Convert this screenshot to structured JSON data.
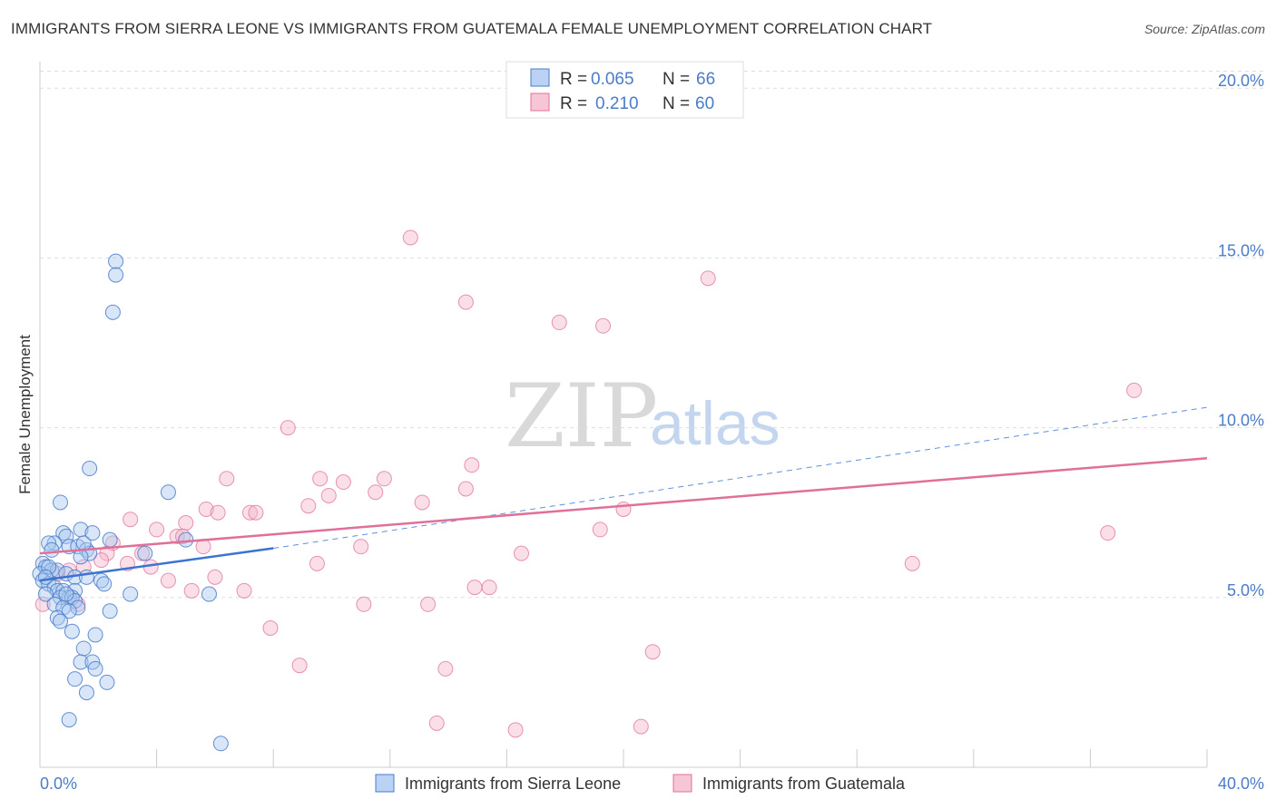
{
  "title": "IMMIGRANTS FROM SIERRA LEONE VS IMMIGRANTS FROM GUATEMALA FEMALE UNEMPLOYMENT CORRELATION CHART",
  "source": "Source: ZipAtlas.com",
  "watermark": {
    "zip": "ZIP",
    "atlas": "atlas"
  },
  "colors": {
    "blue": "#4a7cc9",
    "blue_fill": "#a9c7f0",
    "blue_line": "#3a74d2",
    "pink": "#e0709a",
    "pink_fill": "#f5b8cb",
    "grid": "#dddddd",
    "axis": "#cccccc"
  },
  "legend": {
    "rows": [
      {
        "r_label": "R =",
        "r_value": "0.065",
        "n_label": "N =",
        "n_value": "66"
      },
      {
        "r_label": "R =",
        "r_value": "0.210",
        "n_label": "N =",
        "n_value": "60"
      }
    ]
  },
  "chart_data": {
    "type": "scatter",
    "title": "IMMIGRANTS FROM SIERRA LEONE VS IMMIGRANTS FROM GUATEMALA FEMALE UNEMPLOYMENT CORRELATION CHART",
    "xlabel": "",
    "ylabel": "Female Unemployment",
    "xlim": [
      0,
      40
    ],
    "ylim": [
      0,
      20.5
    ],
    "x_tick_labels": [
      "0.0%",
      "40.0%"
    ],
    "y_ticks": [
      5,
      10,
      15,
      20
    ],
    "y_tick_labels": [
      "5.0%",
      "10.0%",
      "15.0%",
      "20.0%"
    ],
    "series": [
      {
        "name": "Immigrants from Sierra Leone",
        "color": "#4a7cc9",
        "R": 0.065,
        "N": 66,
        "trend": {
          "x0": 0,
          "y0": 5.5,
          "x1": 8,
          "y1": 6.45,
          "dash_to_x": 40,
          "dash_to_y": 10.6
        },
        "points": [
          [
            2.6,
            14.9
          ],
          [
            2.6,
            14.5
          ],
          [
            2.5,
            13.4
          ],
          [
            1.7,
            8.8
          ],
          [
            4.4,
            8.1
          ],
          [
            0.7,
            7.8
          ],
          [
            0.8,
            6.9
          ],
          [
            1.4,
            7.0
          ],
          [
            0.9,
            6.8
          ],
          [
            2.4,
            6.7
          ],
          [
            5.0,
            6.7
          ],
          [
            0.5,
            6.6
          ],
          [
            0.3,
            6.6
          ],
          [
            1.0,
            6.5
          ],
          [
            1.3,
            6.5
          ],
          [
            1.6,
            6.4
          ],
          [
            1.7,
            6.3
          ],
          [
            1.4,
            6.2
          ],
          [
            3.6,
            6.3
          ],
          [
            0.1,
            6.0
          ],
          [
            0.2,
            5.9
          ],
          [
            0.4,
            5.8
          ],
          [
            0.6,
            5.8
          ],
          [
            0.0,
            5.7
          ],
          [
            0.9,
            5.7
          ],
          [
            1.2,
            5.6
          ],
          [
            1.6,
            5.6
          ],
          [
            0.1,
            5.5
          ],
          [
            2.1,
            5.5
          ],
          [
            2.2,
            5.4
          ],
          [
            0.3,
            5.4
          ],
          [
            0.5,
            5.3
          ],
          [
            0.6,
            5.2
          ],
          [
            0.8,
            5.2
          ],
          [
            0.2,
            5.1
          ],
          [
            1.2,
            5.2
          ],
          [
            1.0,
            5.0
          ],
          [
            0.7,
            5.0
          ],
          [
            1.1,
            5.0
          ],
          [
            1.2,
            4.9
          ],
          [
            3.1,
            5.1
          ],
          [
            5.8,
            5.1
          ],
          [
            0.5,
            4.8
          ],
          [
            0.8,
            4.7
          ],
          [
            1.3,
            4.7
          ],
          [
            1.0,
            4.6
          ],
          [
            2.4,
            4.6
          ],
          [
            0.6,
            4.4
          ],
          [
            0.7,
            4.3
          ],
          [
            1.1,
            4.0
          ],
          [
            1.9,
            3.9
          ],
          [
            1.5,
            3.5
          ],
          [
            1.4,
            3.1
          ],
          [
            1.8,
            3.1
          ],
          [
            1.9,
            2.9
          ],
          [
            1.2,
            2.6
          ],
          [
            2.3,
            2.5
          ],
          [
            1.6,
            2.2
          ],
          [
            1.0,
            1.4
          ],
          [
            6.2,
            0.7
          ],
          [
            0.3,
            5.9
          ],
          [
            0.9,
            5.1
          ],
          [
            1.5,
            6.6
          ],
          [
            0.4,
            6.4
          ],
          [
            0.2,
            5.6
          ],
          [
            1.8,
            6.9
          ]
        ]
      },
      {
        "name": "Immigrants from Guatemala",
        "color": "#e0709a",
        "R": 0.21,
        "N": 60,
        "trend": {
          "x0": 0,
          "y0": 6.3,
          "x1": 40,
          "y1": 9.1
        },
        "points": [
          [
            12.7,
            15.6
          ],
          [
            22.9,
            14.4
          ],
          [
            14.6,
            13.7
          ],
          [
            17.8,
            13.1
          ],
          [
            19.3,
            13.0
          ],
          [
            37.5,
            11.1
          ],
          [
            8.5,
            10.0
          ],
          [
            14.8,
            8.9
          ],
          [
            6.4,
            8.5
          ],
          [
            9.6,
            8.5
          ],
          [
            10.4,
            8.4
          ],
          [
            11.8,
            8.5
          ],
          [
            11.5,
            8.1
          ],
          [
            14.6,
            8.2
          ],
          [
            9.9,
            8.0
          ],
          [
            13.1,
            7.8
          ],
          [
            9.2,
            7.7
          ],
          [
            5.7,
            7.6
          ],
          [
            6.1,
            7.5
          ],
          [
            7.2,
            7.5
          ],
          [
            7.4,
            7.5
          ],
          [
            20.0,
            7.6
          ],
          [
            3.1,
            7.3
          ],
          [
            5.0,
            7.2
          ],
          [
            4.0,
            7.0
          ],
          [
            19.2,
            7.0
          ],
          [
            36.6,
            6.9
          ],
          [
            4.7,
            6.8
          ],
          [
            4.9,
            6.8
          ],
          [
            2.5,
            6.6
          ],
          [
            5.6,
            6.5
          ],
          [
            11.0,
            6.5
          ],
          [
            16.5,
            6.3
          ],
          [
            3.5,
            6.3
          ],
          [
            2.3,
            6.3
          ],
          [
            2.1,
            6.1
          ],
          [
            3.0,
            6.0
          ],
          [
            3.8,
            5.9
          ],
          [
            9.5,
            6.0
          ],
          [
            29.9,
            6.0
          ],
          [
            1.5,
            5.9
          ],
          [
            1.0,
            5.8
          ],
          [
            0.6,
            5.7
          ],
          [
            4.4,
            5.5
          ],
          [
            6.0,
            5.6
          ],
          [
            14.9,
            5.3
          ],
          [
            15.4,
            5.3
          ],
          [
            5.2,
            5.2
          ],
          [
            7.0,
            5.2
          ],
          [
            0.1,
            4.8
          ],
          [
            11.1,
            4.8
          ],
          [
            13.3,
            4.8
          ],
          [
            1.3,
            4.8
          ],
          [
            7.9,
            4.1
          ],
          [
            21.0,
            3.4
          ],
          [
            8.9,
            3.0
          ],
          [
            13.9,
            2.9
          ],
          [
            13.6,
            1.3
          ],
          [
            16.3,
            1.1
          ],
          [
            20.6,
            1.2
          ]
        ]
      }
    ]
  }
}
